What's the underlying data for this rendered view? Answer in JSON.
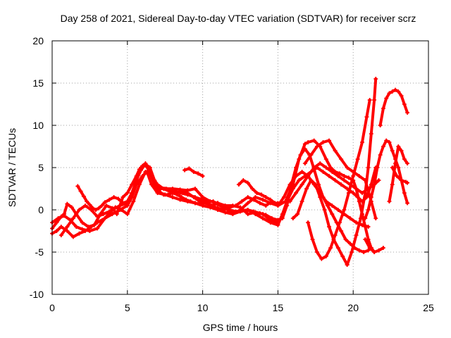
{
  "chart_data": {
    "type": "line",
    "title": "Day 258 of 2021, Sidereal Day-to-day VTEC variation (SDTVAR) for receiver scrz",
    "xlabel": "GPS time / hours",
    "ylabel": "SDTVAR / TECUs",
    "xlim": [
      0,
      25
    ],
    "ylim": [
      -10,
      20
    ],
    "xticks": [
      0,
      5,
      10,
      15,
      20,
      25
    ],
    "yticks": [
      -10,
      -5,
      0,
      5,
      10,
      15,
      20
    ],
    "grid": true,
    "marker": "plus",
    "color": "#ff0000",
    "series": [
      {
        "name": "trace-1",
        "x": [
          0.0,
          0.3,
          0.6,
          0.8,
          1.0,
          1.3,
          1.6,
          2.0,
          2.4,
          2.8,
          3.2,
          3.6,
          4.0,
          4.3,
          4.5,
          4.7,
          5.0,
          5.3,
          5.6,
          5.8,
          6.0,
          6.2,
          6.5,
          6.8,
          7.2,
          7.6,
          8.0,
          8.5,
          9.0,
          9.5,
          10.0,
          10.5,
          11.0,
          11.5,
          12.0,
          12.5,
          13.0,
          13.5,
          14.0,
          14.5,
          15.0
        ],
        "y": [
          -2.2,
          -1.5,
          -0.8,
          -0.5,
          0.7,
          0.3,
          -0.5,
          -1.5,
          -2.0,
          -1.8,
          -0.5,
          0.5,
          0.2,
          -0.5,
          0.5,
          1.5,
          2.0,
          3.0,
          4.0,
          4.8,
          5.2,
          5.5,
          4.5,
          3.0,
          2.5,
          2.5,
          2.5,
          2.4,
          2.3,
          2.5,
          1.5,
          1.0,
          0.8,
          0.5,
          0.5,
          0.3,
          -0.5,
          -0.3,
          -0.5,
          -1.2,
          -1.5
        ]
      },
      {
        "name": "trace-2",
        "x": [
          0.0,
          0.4,
          0.8,
          1.2,
          1.6,
          2.0,
          2.5,
          3.0,
          3.5,
          4.0,
          4.5,
          5.0,
          5.3,
          5.6,
          5.9,
          6.2,
          6.5,
          6.8,
          7.0,
          7.5,
          8.0,
          8.5,
          9.0,
          9.5,
          10.0,
          10.3,
          10.6,
          11.0,
          11.5,
          12.0,
          12.5,
          13.0,
          13.5,
          14.0,
          14.5,
          15.0,
          15.5,
          16.0,
          16.4,
          16.8,
          17.0,
          17.4,
          17.8,
          18.2,
          18.5,
          18.8,
          19.1,
          19.4,
          19.7,
          20.0,
          20.2,
          20.4,
          20.6,
          20.8,
          21.0,
          21.2,
          21.4
        ],
        "y": [
          -1.5,
          -1.0,
          -0.7,
          -1.2,
          -2.0,
          -2.3,
          -2.5,
          -2.2,
          -1.0,
          0.0,
          0.5,
          0.8,
          2.0,
          3.5,
          5.0,
          5.3,
          4.5,
          3.0,
          2.5,
          2.5,
          2.3,
          2.0,
          1.8,
          1.5,
          1.2,
          0.8,
          0.5,
          0.8,
          0.2,
          -0.5,
          0.0,
          0.8,
          1.5,
          1.2,
          0.8,
          0.5,
          1.0,
          3.0,
          6.0,
          7.8,
          8.0,
          8.2,
          7.5,
          6.0,
          5.0,
          4.5,
          4.3,
          4.0,
          3.8,
          3.5,
          2.5,
          1.0,
          -0.5,
          -2.0,
          -3.5,
          -4.5,
          -5.0
        ]
      },
      {
        "name": "trace-3",
        "x": [
          0.0,
          0.3,
          0.6,
          1.0,
          1.4,
          1.8,
          2.2,
          2.6,
          3.0,
          3.5,
          4.0,
          4.5,
          5.0,
          5.3,
          5.6,
          6.0,
          6.3,
          6.6,
          7.0,
          7.5,
          8.0,
          8.5,
          9.0,
          9.5,
          10.0,
          10.5,
          11.0,
          11.5,
          12.0,
          12.5,
          13.0,
          13.5,
          14.0,
          14.5,
          15.0,
          15.3,
          15.6,
          16.0,
          16.4,
          16.8,
          17.2,
          17.6,
          18.0,
          18.4,
          18.8,
          19.2,
          19.6,
          20.0,
          20.3,
          20.6,
          20.9,
          21.2,
          21.5
        ],
        "y": [
          -2.8,
          -2.5,
          -2.0,
          -2.5,
          -3.2,
          -2.8,
          -2.5,
          -2.0,
          -1.5,
          -1.0,
          -0.5,
          0.0,
          0.5,
          1.5,
          3.0,
          4.0,
          4.5,
          3.0,
          2.0,
          1.8,
          1.5,
          1.2,
          1.0,
          0.8,
          0.5,
          0.3,
          0.0,
          -0.3,
          -0.5,
          -0.2,
          0.0,
          -0.5,
          -1.0,
          -1.5,
          -1.8,
          -0.5,
          1.0,
          2.5,
          3.5,
          4.0,
          4.5,
          5.0,
          4.5,
          4.0,
          3.5,
          3.0,
          2.5,
          2.0,
          1.5,
          1.0,
          1.5,
          3.0,
          5.0
        ]
      },
      {
        "name": "trace-4",
        "x": [
          0.6,
          1.0,
          1.4,
          1.8,
          2.2,
          2.6,
          3.0,
          3.4,
          3.8,
          4.2,
          4.6,
          5.0,
          5.4,
          5.8,
          6.2,
          6.6,
          7.0,
          7.4,
          7.8,
          8.2,
          8.6,
          9.0,
          9.4,
          9.8,
          10.2,
          10.6,
          11.0,
          11.4,
          11.8,
          12.2,
          12.6,
          13.0,
          13.4,
          13.8,
          14.2,
          14.6,
          15.0,
          15.4,
          15.8,
          16.2,
          16.6,
          17.0,
          17.4,
          17.8,
          18.2,
          18.6,
          19.0,
          19.4,
          19.8,
          20.2,
          20.6,
          21.0
        ],
        "y": [
          -3.0,
          -2.0,
          -1.0,
          0.0,
          0.5,
          0.0,
          -0.8,
          -0.5,
          -0.2,
          0.3,
          0.0,
          -0.5,
          1.0,
          3.0,
          4.5,
          4.0,
          3.0,
          2.5,
          2.2,
          2.0,
          2.2,
          2.0,
          1.5,
          1.0,
          0.8,
          0.5,
          0.2,
          0.0,
          0.3,
          0.5,
          1.0,
          1.5,
          1.2,
          0.8,
          0.5,
          1.0,
          0.5,
          1.5,
          3.0,
          4.0,
          4.5,
          4.0,
          3.0,
          2.0,
          1.0,
          0.5,
          0.0,
          -0.5,
          -1.0,
          -1.5,
          -1.8,
          -2.0
        ]
      },
      {
        "name": "trace-5",
        "x": [
          1.7,
          1.9,
          2.1,
          2.3,
          2.5,
          2.7,
          2.9,
          3.1,
          3.3,
          3.5,
          3.8,
          4.1,
          4.4,
          4.7,
          5.0,
          5.3,
          5.6,
          5.9,
          6.2,
          6.5,
          6.8,
          7.1,
          7.4,
          7.7,
          8.0,
          8.3,
          8.6,
          8.9,
          9.2,
          9.5,
          9.8,
          10.1,
          10.4,
          10.7,
          11.0,
          11.4,
          11.8,
          12.2,
          12.6,
          13.0,
          13.4,
          13.8,
          14.2,
          14.6,
          15.0,
          15.3,
          15.6,
          15.9,
          16.2,
          16.5,
          16.8,
          17.1,
          17.4,
          17.7,
          18.0,
          18.3,
          18.6,
          18.9,
          19.2,
          19.5,
          19.8,
          20.1,
          20.4,
          20.7,
          21.0,
          21.2
        ],
        "y": [
          2.8,
          2.2,
          1.6,
          1.0,
          0.6,
          0.2,
          0.0,
          0.2,
          0.5,
          0.9,
          1.2,
          1.5,
          1.3,
          0.8,
          1.0,
          2.0,
          3.5,
          4.7,
          5.4,
          5.0,
          3.5,
          2.2,
          1.8,
          1.8,
          2.0,
          1.8,
          1.5,
          1.2,
          1.0,
          0.8,
          0.7,
          0.8,
          1.0,
          1.0,
          0.6,
          0.3,
          0.0,
          -0.2,
          -0.1,
          0.0,
          -0.2,
          -0.4,
          -0.6,
          -1.0,
          -1.2,
          -1.0,
          0.5,
          3.0,
          5.0,
          6.5,
          7.2,
          6.5,
          4.8,
          3.0,
          1.5,
          0.5,
          -0.5,
          -1.5,
          -2.5,
          -3.5,
          -4.0,
          -4.5,
          -4.8,
          -5.0,
          -4.8,
          -4.5
        ]
      },
      {
        "name": "trace-6",
        "x": [
          16.8,
          17.2,
          17.6,
          18.0,
          18.4,
          18.8,
          19.2,
          19.6,
          20.0,
          20.4,
          20.8,
          21.2,
          21.5
        ],
        "y": [
          5.5,
          6.5,
          7.5,
          8.0,
          8.2,
          7.0,
          6.0,
          5.0,
          4.5,
          4.0,
          3.5,
          1.0,
          -1.0
        ]
      },
      {
        "name": "trace-7",
        "x": [
          15.8,
          16.2,
          16.6,
          17.0,
          17.4,
          17.8,
          18.2,
          18.6,
          19.0,
          19.4,
          19.8,
          20.2,
          20.6,
          21.0,
          21.4,
          21.7
        ],
        "y": [
          1.0,
          2.0,
          3.0,
          4.0,
          5.0,
          5.5,
          5.0,
          4.5,
          4.0,
          3.5,
          3.0,
          2.5,
          2.0,
          2.5,
          3.0,
          3.5
        ]
      },
      {
        "name": "trace-8",
        "x": [
          8.8,
          9.1,
          9.4,
          9.7,
          10.0
        ],
        "y": [
          4.7,
          4.9,
          4.5,
          4.3,
          4.0
        ]
      },
      {
        "name": "trace-9",
        "x": [
          12.4,
          12.7,
          13.0,
          13.3,
          13.6,
          13.9,
          14.2,
          14.5,
          14.8,
          15.0
        ],
        "y": [
          3.0,
          3.5,
          3.2,
          2.5,
          2.0,
          1.8,
          1.5,
          1.2,
          0.8,
          0.8
        ]
      },
      {
        "name": "trace-10",
        "x": [
          17.0,
          17.3,
          17.6,
          17.9,
          18.2,
          18.5,
          18.8,
          19.1,
          19.4,
          19.7,
          20.0,
          20.3,
          20.6,
          20.9,
          21.1
        ],
        "y": [
          -1.5,
          -3.5,
          -5.0,
          -5.8,
          -5.5,
          -4.5,
          -3.0,
          -1.5,
          0.0,
          2.0,
          4.0,
          6.0,
          8.0,
          11.0,
          13.0
        ]
      },
      {
        "name": "trace-11",
        "x": [
          16.0,
          16.3,
          16.6,
          16.9,
          17.2,
          17.5,
          17.8,
          18.1,
          18.4,
          18.7,
          19.0,
          19.3,
          19.6
        ],
        "y": [
          -1.0,
          -0.5,
          1.0,
          2.5,
          3.5,
          3.0,
          1.5,
          0.0,
          -2.0,
          -3.5,
          -4.5,
          -5.5,
          -6.5
        ]
      },
      {
        "name": "trace-12",
        "x": [
          19.6,
          19.9,
          20.2,
          20.5,
          20.8,
          21.0,
          21.2,
          21.4,
          21.5
        ],
        "y": [
          -6.5,
          -5.0,
          -3.0,
          -1.0,
          2.0,
          5.0,
          9.0,
          13.0,
          15.5
        ]
      },
      {
        "name": "trace-13",
        "x": [
          20.8,
          21.0,
          21.2,
          21.4,
          21.6,
          21.8,
          22.0,
          22.2,
          22.4,
          22.6,
          22.8,
          23.0,
          23.2,
          23.4,
          23.6
        ],
        "y": [
          -1.0,
          0.0,
          1.5,
          3.0,
          5.0,
          6.5,
          7.5,
          8.2,
          8.0,
          7.0,
          6.0,
          5.0,
          3.5,
          2.0,
          0.8
        ]
      },
      {
        "name": "trace-14",
        "x": [
          21.8,
          22.0,
          22.2,
          22.4,
          22.6,
          22.8,
          23.0,
          23.2,
          23.4,
          23.6
        ],
        "y": [
          10.0,
          12.0,
          13.2,
          13.8,
          14.0,
          14.2,
          14.0,
          13.5,
          12.5,
          11.5
        ]
      },
      {
        "name": "trace-15",
        "x": [
          22.4,
          22.6,
          22.8,
          23.0,
          23.2,
          23.4,
          23.6
        ],
        "y": [
          1.0,
          3.0,
          5.5,
          7.5,
          7.0,
          6.0,
          5.5
        ]
      },
      {
        "name": "trace-16",
        "x": [
          22.6,
          22.9,
          23.2,
          23.5,
          23.6
        ],
        "y": [
          5.0,
          4.0,
          3.5,
          3.3,
          3.2
        ]
      },
      {
        "name": "trace-17",
        "x": [
          20.8,
          21.1,
          21.4,
          21.7,
          22.0
        ],
        "y": [
          -3.5,
          -4.5,
          -5.0,
          -4.8,
          -4.5
        ]
      }
    ]
  }
}
